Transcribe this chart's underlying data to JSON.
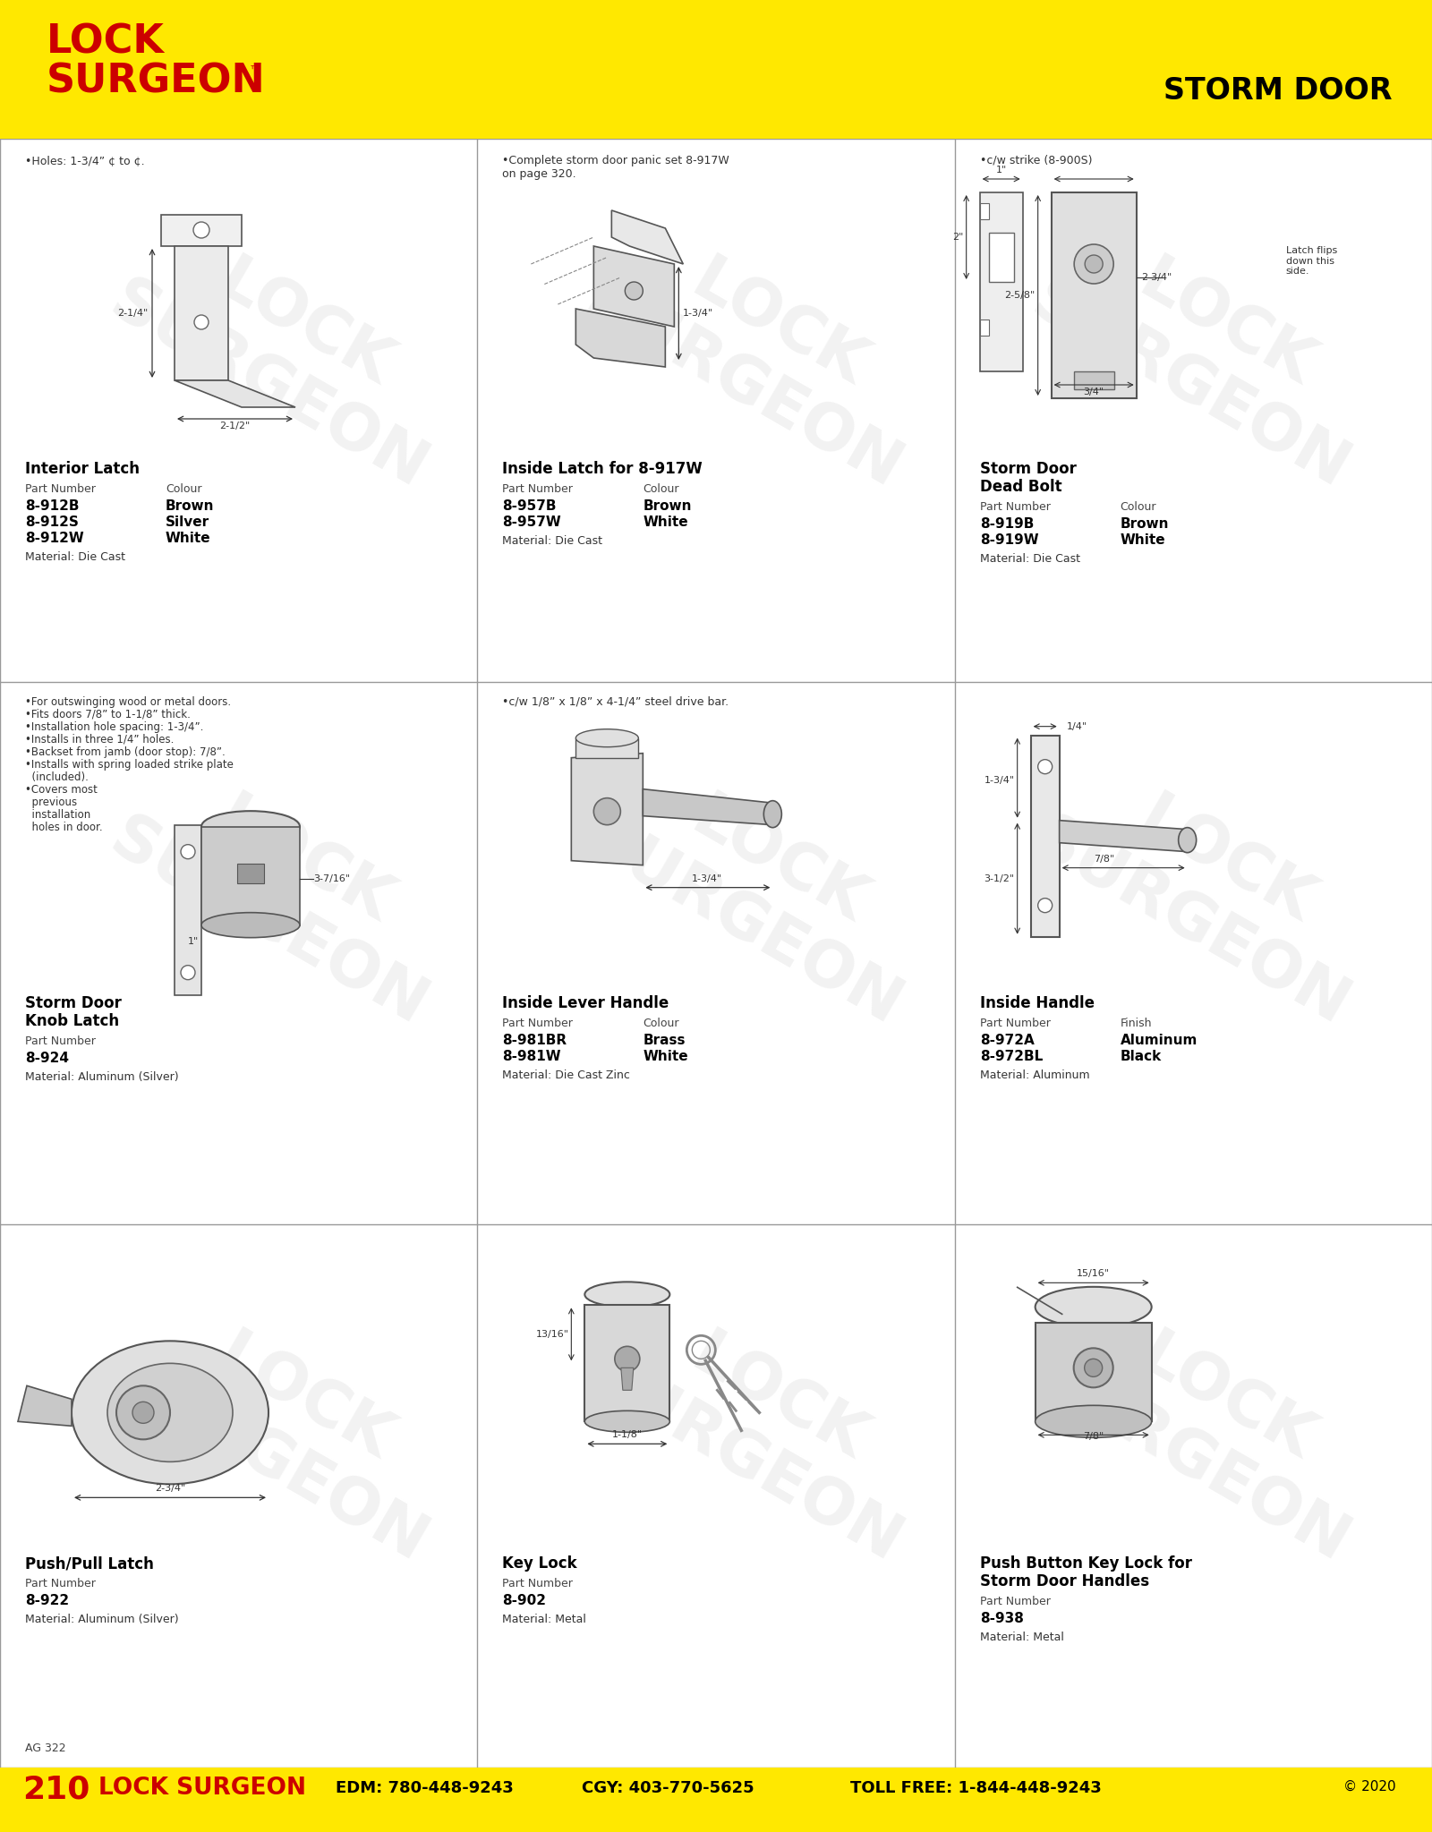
{
  "page_number": "210",
  "page_ref": "AG 322",
  "header_bg": "#FFE800",
  "header_text_color": "#CC0000",
  "header_title": "STORM DOOR",
  "header_title_color": "#000000",
  "brand_line1": "LOCK",
  "brand_line2": "SURGEON",
  "footer_bg": "#FFE800",
  "footer_copyright": "© 2020",
  "bg_color": "#FFFFFF",
  "grid_color": "#999999",
  "items": [
    {
      "id": "interior_latch",
      "title": "Interior Latch",
      "notes": "•Holes: 1-3/4” ¢ to ¢.",
      "part_label": "Part Number",
      "colour_label": "Colour",
      "parts": [
        [
          "8-912B",
          "Brown"
        ],
        [
          "8-912S",
          "Silver"
        ],
        [
          "8-912W",
          "White"
        ]
      ],
      "material": "Material: Die Cast"
    },
    {
      "id": "inside_latch",
      "title": "Inside Latch for 8-917W",
      "notes": "•Complete storm door panic set 8-917W\non page 320.",
      "part_label": "Part Number",
      "colour_label": "Colour",
      "parts": [
        [
          "8-957B",
          "Brown"
        ],
        [
          "8-957W",
          "White"
        ]
      ],
      "material": "Material: Die Cast"
    },
    {
      "id": "storm_door_dead_bolt",
      "title": "Storm Door\nDead Bolt",
      "notes": "•c/w strike (8-900S)",
      "part_label": "Part Number",
      "colour_label": "Colour",
      "parts": [
        [
          "8-919B",
          "Brown"
        ],
        [
          "8-919W",
          "White"
        ]
      ],
      "material": "Material: Die Cast",
      "extra_note": "Latch flips\ndown this\nside."
    },
    {
      "id": "storm_door_knob_latch",
      "title": "Storm Door\nKnob Latch",
      "notes_lines": [
        "•For outswinging wood or metal doors.",
        "•Fits doors 7/8” to 1-1/8” thick.",
        "•Installation hole spacing: 1-3/4”.",
        "•Installs in three 1/4” holes.",
        "•Backset from jamb (door stop): 7/8”.",
        "•Installs with spring loaded strike plate",
        "  (included).",
        "•Covers most",
        "  previous",
        "  installation",
        "  holes in door."
      ],
      "part_label": "Part Number",
      "parts": [
        [
          "8-924",
          ""
        ]
      ],
      "material": "Material: Aluminum (Silver)"
    },
    {
      "id": "inside_lever_handle",
      "title": "Inside Lever Handle",
      "notes": "•c/w 1/8” x 1/8” x 4-1/4” steel drive bar.",
      "part_label": "Part Number",
      "colour_label": "Colour",
      "parts": [
        [
          "8-981BR",
          "Brass"
        ],
        [
          "8-981W",
          "White"
        ]
      ],
      "material": "Material: Die Cast Zinc"
    },
    {
      "id": "inside_handle",
      "title": "Inside Handle",
      "notes": "",
      "part_label": "Part Number",
      "colour_label": "Finish",
      "parts": [
        [
          "8-972A",
          "Aluminum"
        ],
        [
          "8-972BL",
          "Black"
        ]
      ],
      "material": "Material: Aluminum"
    },
    {
      "id": "push_pull_latch",
      "title": "Push/Pull Latch",
      "notes": "",
      "part_label": "Part Number",
      "parts": [
        [
          "8-922",
          ""
        ]
      ],
      "material": "Material: Aluminum (Silver)"
    },
    {
      "id": "key_lock",
      "title": "Key Lock",
      "notes": "",
      "part_label": "Part Number",
      "parts": [
        [
          "8-902",
          ""
        ]
      ],
      "material": "Material: Metal"
    },
    {
      "id": "push_button_key_lock",
      "title": "Push Button Key Lock for\nStorm Door Handles",
      "notes": "",
      "part_label": "Part Number",
      "parts": [
        [
          "8-938",
          ""
        ]
      ],
      "material": "Material: Metal"
    }
  ]
}
